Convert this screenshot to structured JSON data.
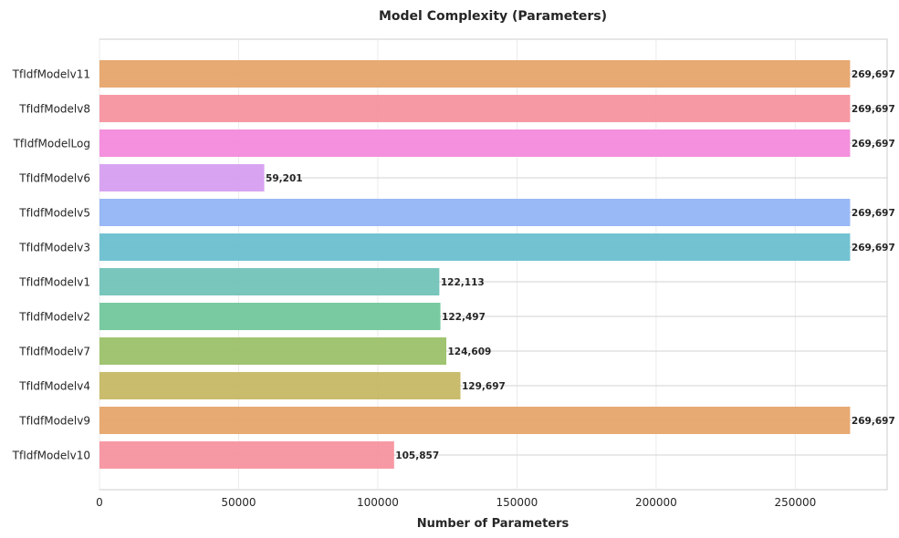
{
  "chart_data": {
    "type": "bar",
    "orientation": "horizontal",
    "title": "Model Complexity (Parameters)",
    "xlabel": "Number of Parameters",
    "ylabel": "",
    "xlim": [
      0,
      283000
    ],
    "xticks": [
      0,
      50000,
      100000,
      150000,
      200000,
      250000
    ],
    "xtick_labels": [
      "0",
      "50000",
      "100000",
      "150000",
      "200000",
      "250000"
    ],
    "grid": true,
    "categories": [
      "TfIdfModelv11",
      "TfIdfModelv8",
      "TfIdfModelLog",
      "TfIdfModelv6",
      "TfIdfModelv5",
      "TfIdfModelv3",
      "TfIdfModelv1",
      "TfIdfModelv2",
      "TfIdfModelv7",
      "TfIdfModelv4",
      "TfIdfModelv9",
      "TfIdfModelv10"
    ],
    "values": [
      269697,
      269697,
      269697,
      59201,
      269697,
      269697,
      122113,
      122497,
      124609,
      129697,
      269697,
      105857
    ],
    "value_labels": [
      "269,697",
      "269,697",
      "269,697",
      "59,201",
      "269,697",
      "269,697",
      "122,113",
      "122,497",
      "124,609",
      "129,697",
      "269,697",
      "105,857"
    ],
    "colors": [
      "#e6a56b",
      "#f7949f",
      "#f38adb",
      "#d69ff1",
      "#93b4f5",
      "#6bbfd0",
      "#72c3b8",
      "#72c79c",
      "#9bc169",
      "#c6b865",
      "#e6a56b",
      "#f7949f"
    ]
  }
}
